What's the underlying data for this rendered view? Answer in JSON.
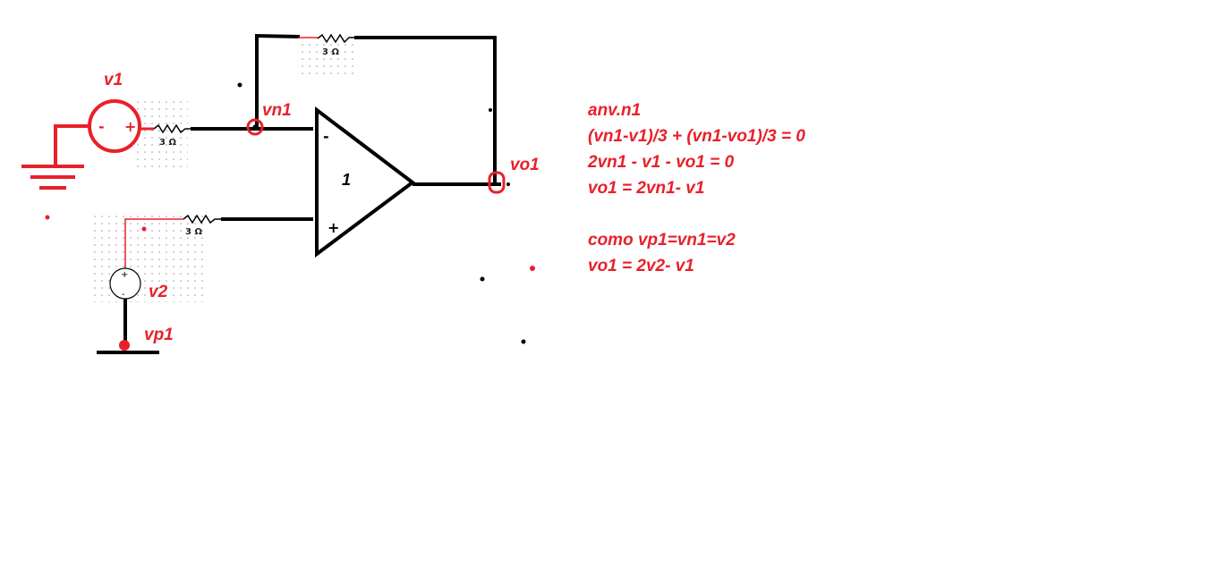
{
  "components": {
    "r_feedback": "3 Ω",
    "r_v1": "3 Ω",
    "r_v2": "3 Ω",
    "opamp_gain": "1",
    "opamp_minus": "-",
    "opamp_plus": "+",
    "src_v1_minus": "-",
    "src_v1_plus": "+",
    "src_v2_plus": "+",
    "src_v2_minus": "-"
  },
  "labels": {
    "v1": "v1",
    "vn1": "vn1",
    "vo1": "vo1",
    "v2": "v2",
    "vp1": "vp1"
  },
  "equations": [
    "anv.n1",
    "(vn1-v1)/3 + (vn1-vo1)/3 = 0",
    "2vn1 - v1 - vo1 = 0",
    "vo1 = 2vn1- v1",
    "",
    "como vp1=vn1=v2",
    "vo1 = 2v2- v1"
  ],
  "colors": {
    "annotation": "#e8202a",
    "wire": "#000000"
  }
}
